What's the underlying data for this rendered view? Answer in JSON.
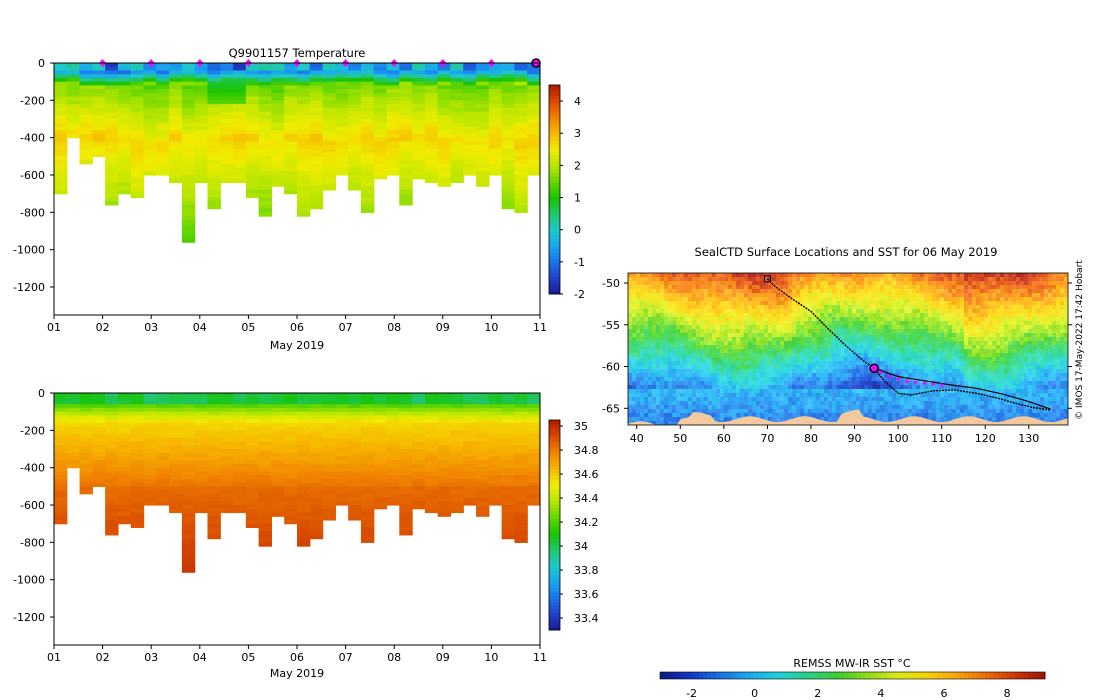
{
  "colors": {
    "temp_scale": [
      "#1a1b8c",
      "#1f3fcc",
      "#1a73e6",
      "#19a6f0",
      "#1ec8c8",
      "#22c56a",
      "#18c400",
      "#66d600",
      "#b8e600",
      "#f0ec00",
      "#f7b800",
      "#f08200",
      "#d84a00",
      "#b01a00"
    ],
    "sal_scale": [
      "#1a1b8c",
      "#1f3fcc",
      "#1a73e6",
      "#19a6f0",
      "#1ec8c8",
      "#22c56a",
      "#18c400",
      "#66d600",
      "#b8e600",
      "#f0ec00",
      "#f7b800",
      "#f08200",
      "#d84a00",
      "#b01a00"
    ],
    "sst_scale": [
      "#0d1a7a",
      "#1233c4",
      "#1a6fe0",
      "#1aa7ee",
      "#20cfd8",
      "#2ad08a",
      "#3ccc32",
      "#8fdc1a",
      "#d6e81a",
      "#f6d20a",
      "#f5a40a",
      "#ea6d0a",
      "#cc3508",
      "#9c120a"
    ],
    "profile_marker": "#ff00ff",
    "track_color": "#000000",
    "land_color": "#f5c9a0"
  },
  "chart_data": [
    {
      "type": "heatmap",
      "name": "temperature",
      "title": "Q9901157  Temperature",
      "xlabel": "May 2019",
      "ylabel": "",
      "xlim": [
        1,
        11
      ],
      "ylim": [
        -1350,
        0
      ],
      "x_ticks": [
        "01",
        "02",
        "03",
        "04",
        "05",
        "06",
        "07",
        "08",
        "09",
        "10",
        "11"
      ],
      "y_ticks": [
        0,
        -200,
        -400,
        -600,
        -800,
        -1000,
        -1200
      ],
      "colorbar": {
        "min": -2,
        "max": 4.5,
        "ticks": [
          -2,
          -1,
          0,
          1,
          2,
          3,
          4
        ]
      },
      "profile_marker_days": [
        2,
        3,
        4,
        5,
        6,
        7,
        8,
        9,
        10
      ],
      "current_profile_day": 11,
      "profile_max_depth": [
        -690,
        -400,
        -540,
        -500,
        -760,
        -690,
        -720,
        -600,
        -590,
        -640,
        -960,
        -640,
        -770,
        -640,
        -630,
        -720,
        -810,
        -660,
        -700,
        -820,
        -770,
        -680,
        -600,
        -670,
        -800,
        -620,
        -600,
        -760,
        -620,
        -630,
        -660,
        -640,
        -600,
        -660,
        -600,
        -780,
        -790,
        -600
      ],
      "values_description": "surface ~-1.5 to 0.5 degC, subsurface max ~2.5 degC near 300-500 m"
    },
    {
      "type": "heatmap",
      "name": "salinity",
      "title": "",
      "xlabel": "May 2019",
      "ylabel": "",
      "xlim": [
        1,
        11
      ],
      "ylim": [
        -1350,
        0
      ],
      "x_ticks": [
        "01",
        "02",
        "03",
        "04",
        "05",
        "06",
        "07",
        "08",
        "09",
        "10",
        "11"
      ],
      "y_ticks": [
        0,
        -200,
        -400,
        -600,
        -800,
        -1000,
        -1200
      ],
      "colorbar": {
        "min": 33.3,
        "max": 35.05,
        "ticks": [
          33.4,
          33.6,
          33.8,
          34,
          34.2,
          34.4,
          34.6,
          34.8,
          35
        ]
      },
      "tick_labels": [
        "33.4",
        "33.6",
        "33.8",
        "34",
        "34.2",
        "34.4",
        "34.6",
        "34.8",
        "35"
      ],
      "profile_max_depth": [
        -690,
        -400,
        -540,
        -500,
        -760,
        -690,
        -720,
        -600,
        -590,
        -640,
        -960,
        -640,
        -770,
        -640,
        -630,
        -720,
        -810,
        -660,
        -700,
        -820,
        -770,
        -680,
        -600,
        -670,
        -800,
        -620,
        -600,
        -760,
        -620,
        -630,
        -660,
        -640,
        -600,
        -660,
        -600,
        -780,
        -790,
        -600
      ]
    },
    {
      "type": "map",
      "name": "sst_map",
      "title": "SealCTD Surface Locations and SST for 06 May 2019",
      "x_ticks": [
        "40",
        "50",
        "60",
        "70",
        "80",
        "90",
        "100",
        "110",
        "120",
        "130"
      ],
      "y_ticks": [
        "-50",
        "-55",
        "-60",
        "-65"
      ],
      "xlim": [
        38,
        139
      ],
      "ylim": [
        -67,
        -48.8
      ],
      "colorbar_label": "REMSS MW-IR SST °C",
      "colorbar": {
        "min": -3,
        "max": 9.2,
        "ticks": [
          "-2",
          "0",
          "2",
          "4",
          "6",
          "8"
        ]
      },
      "current_location": {
        "lon": 94.5,
        "lat": -60.2
      },
      "start_location": {
        "lon": 70,
        "lat": -49.5
      },
      "recent_positions_lon": [
        96,
        98,
        100,
        102,
        104,
        106,
        108,
        110
      ],
      "recent_positions_lat": [
        -60.7,
        -61.2,
        -61.5,
        -61.8,
        -61.9,
        -62.0,
        -62.1,
        -62.2
      ],
      "credit": "© IMOS 17-May-2022 17:42 Hobart"
    }
  ],
  "labels": {
    "temp_title": "Q9901157  Temperature",
    "map_title": "SealCTD Surface Locations and SST for 06 May 2019",
    "month_label": "May 2019",
    "sst_colorbar_label": "REMSS MW-IR SST °C",
    "credit": "© IMOS 17-May-2022 17:42 Hobart"
  }
}
